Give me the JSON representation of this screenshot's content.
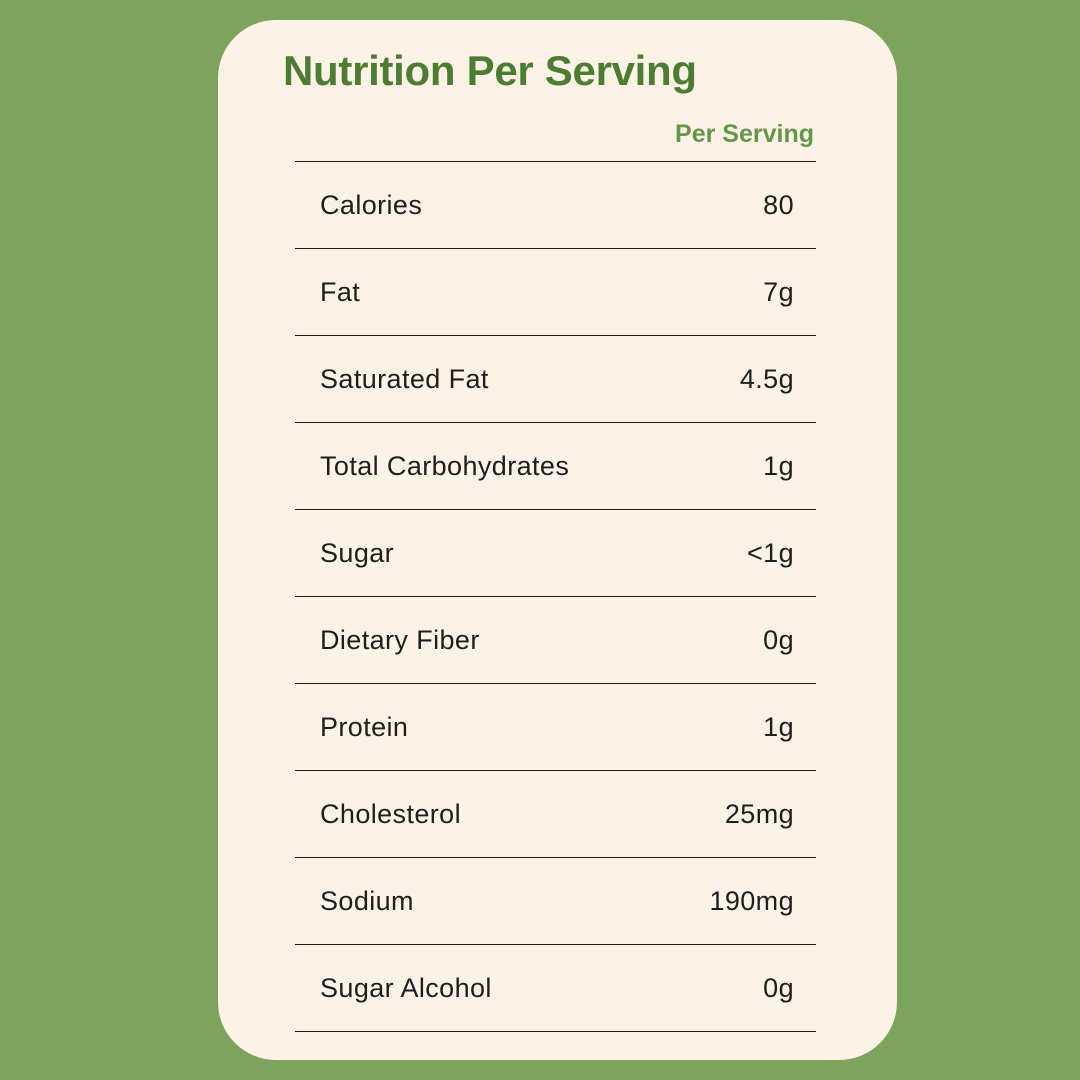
{
  "colors": {
    "background_green": "#7CA45C",
    "card_cream": "#FCF3E6",
    "title_green": "#4D7C33",
    "header_green": "#65974B",
    "text_dark": "#1E1E1E",
    "line_color": "#1E1E1E"
  },
  "title": "Nutrition Per Serving",
  "table": {
    "header": "Per Serving",
    "rows": [
      {
        "label": "Calories",
        "value": "80"
      },
      {
        "label": "Fat",
        "value": "7g"
      },
      {
        "label": "Saturated Fat",
        "value": "4.5g"
      },
      {
        "label": "Total Carbohydrates",
        "value": "1g"
      },
      {
        "label": "Sugar",
        "value": "<1g"
      },
      {
        "label": "Dietary Fiber",
        "value": "0g"
      },
      {
        "label": "Protein",
        "value": "1g"
      },
      {
        "label": "Cholesterol",
        "value": "25mg"
      },
      {
        "label": "Sodium",
        "value": "190mg"
      },
      {
        "label": "Sugar Alcohol",
        "value": "0g"
      }
    ]
  }
}
